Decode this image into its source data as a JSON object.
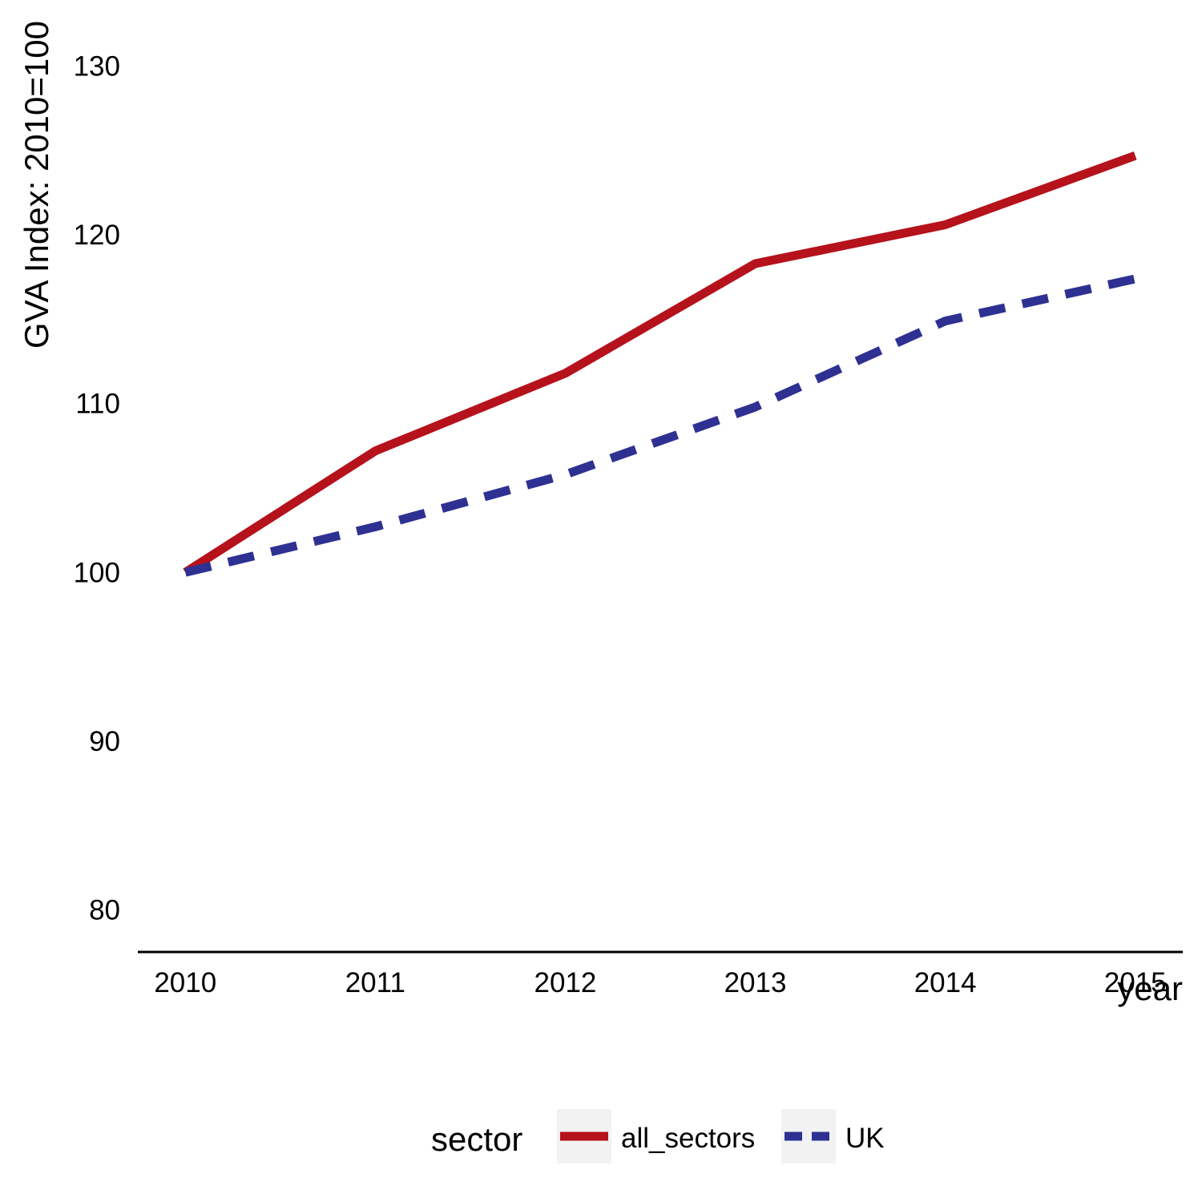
{
  "chart_data": {
    "type": "line",
    "xlabel": "year",
    "ylabel": "GVA Index: 2010=100",
    "x": [
      2010,
      2011,
      2012,
      2013,
      2014,
      2015
    ],
    "xticks": [
      "2010",
      "2011",
      "2012",
      "2013",
      "2014",
      "2015"
    ],
    "yticks": [
      "80",
      "90",
      "100",
      "110",
      "120",
      "130"
    ],
    "ylim": [
      77.5,
      132.5
    ],
    "xlim": [
      2009.75,
      2015.25
    ],
    "grid": false,
    "series": [
      {
        "name": "all_sectors",
        "values": [
          100.0,
          107.2,
          111.8,
          118.3,
          120.6,
          124.7
        ],
        "color": "#b5121b",
        "linestyle": "solid"
      },
      {
        "name": "UK",
        "values": [
          100.0,
          102.7,
          105.8,
          109.8,
          114.9,
          117.4
        ],
        "color": "#2e3192",
        "linestyle": "dashed"
      }
    ],
    "legend": {
      "title": "sector",
      "position": "bottom"
    }
  }
}
